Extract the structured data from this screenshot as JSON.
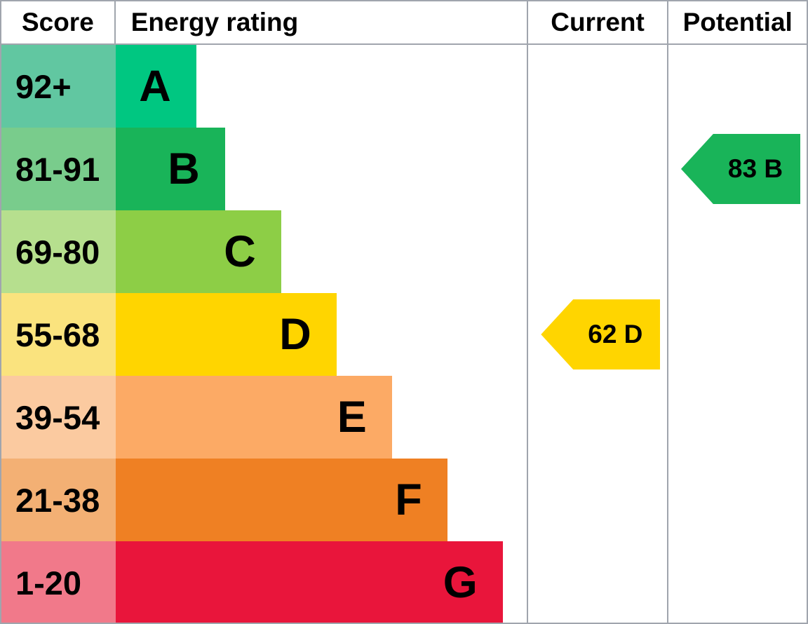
{
  "header": {
    "score": "Score",
    "energy_rating": "Energy rating",
    "current": "Current",
    "potential": "Potential"
  },
  "bands": [
    {
      "letter": "A",
      "score": "92+",
      "bar_color": "#00c781",
      "score_cell_color": "#61c7a1"
    },
    {
      "letter": "B",
      "score": "81-91",
      "bar_color": "#19b459",
      "score_cell_color": "#79cc8c"
    },
    {
      "letter": "C",
      "score": "69-80",
      "bar_color": "#8dce46",
      "score_cell_color": "#b6df8e"
    },
    {
      "letter": "D",
      "score": "55-68",
      "bar_color": "#ffd500",
      "score_cell_color": "#fae37e"
    },
    {
      "letter": "E",
      "score": "39-54",
      "bar_color": "#fcaa65",
      "score_cell_color": "#fbcaa0"
    },
    {
      "letter": "F",
      "score": "21-38",
      "bar_color": "#ef8023",
      "score_cell_color": "#f3b074"
    },
    {
      "letter": "G",
      "score": "1-20",
      "bar_color": "#e9153b",
      "score_cell_color": "#f1798a"
    }
  ],
  "markers": {
    "current": {
      "label": "62 D",
      "value": 62,
      "band": "D",
      "color": "#ffd500"
    },
    "potential": {
      "label": "83 B",
      "value": 83,
      "band": "B",
      "color": "#19b459"
    }
  },
  "colors": {
    "border_gray": "#a0a5ad",
    "text": "#000000",
    "background": "#ffffff"
  },
  "chart_data": {
    "type": "bar",
    "title": "Energy performance certificate rating chart",
    "categories": [
      "A",
      "B",
      "C",
      "D",
      "E",
      "F",
      "G"
    ],
    "score_ranges": [
      "92+",
      "81-91",
      "69-80",
      "55-68",
      "39-54",
      "21-38",
      "1-20"
    ],
    "bar_relative_lengths": [
      115,
      156,
      236,
      315,
      394,
      473,
      552
    ],
    "column_headers": [
      "Score",
      "Energy rating",
      "Current",
      "Potential"
    ],
    "current_rating": {
      "score": 62,
      "band": "D"
    },
    "potential_rating": {
      "score": 83,
      "band": "B"
    },
    "legend_position": "none",
    "grid": false
  }
}
